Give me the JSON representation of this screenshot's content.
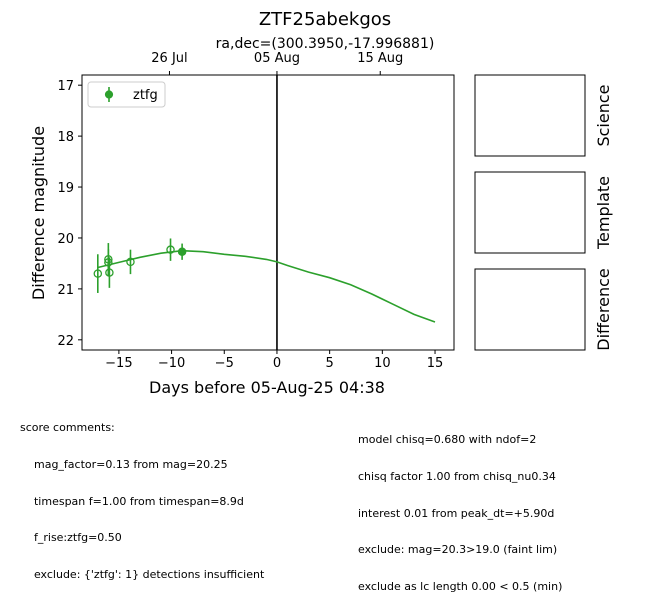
{
  "chart_data": {
    "type": "scatter",
    "title": "ZTF25abekgos",
    "subtitle": "ra,dec=(300.3950,-17.996881)",
    "xlabel": "Days before 05-Aug-25 04:38",
    "ylabel": "Difference magnitude",
    "xlim": [
      -18.5,
      16.8
    ],
    "ylim": [
      22.2,
      16.8
    ],
    "inverted_y": true,
    "x_ticks": [
      -15,
      -10,
      -5,
      0,
      5,
      10,
      15
    ],
    "x_tick_labels": [
      "−15",
      "−10",
      "−5",
      "0",
      "5",
      "10",
      "15"
    ],
    "y_ticks": [
      17,
      18,
      19,
      20,
      21,
      22
    ],
    "y_tick_labels": [
      "17",
      "18",
      "19",
      "20",
      "21",
      "22"
    ],
    "top_axis": {
      "ticks": [
        -10.2,
        0,
        9.8
      ],
      "labels": [
        "26 Jul",
        "05 Aug",
        "15 Aug"
      ]
    },
    "vline_x": 0,
    "legend": {
      "placement": "top-left",
      "entries": [
        "ztfg"
      ]
    },
    "colors": {
      "ztfg": "#2ca02c"
    },
    "series": [
      {
        "name": "ztfg",
        "points": [
          {
            "x": -17.0,
            "y": 20.7,
            "err": 0.38,
            "filled": false
          },
          {
            "x": -16.0,
            "y": 20.42,
            "err": 0.32,
            "filled": false
          },
          {
            "x": -16.0,
            "y": 20.48,
            "err": 0.26,
            "filled": false
          },
          {
            "x": -15.9,
            "y": 20.68,
            "err": 0.3,
            "filled": false
          },
          {
            "x": -13.9,
            "y": 20.47,
            "err": 0.24,
            "filled": false
          },
          {
            "x": -10.1,
            "y": 20.23,
            "err": 0.22,
            "filled": false
          },
          {
            "x": -9.0,
            "y": 20.27,
            "err": 0.16,
            "filled": true
          }
        ],
        "model": {
          "x": [
            -17.0,
            -15.0,
            -13.0,
            -11.0,
            -9.0,
            -7.0,
            -5.0,
            -3.0,
            -1.0,
            0.0,
            1.0,
            3.0,
            5.0,
            7.0,
            9.0,
            11.0,
            13.0,
            15.0
          ],
          "y": [
            20.58,
            20.48,
            20.38,
            20.3,
            20.25,
            20.27,
            20.32,
            20.36,
            20.42,
            20.47,
            20.54,
            20.67,
            20.78,
            20.92,
            21.1,
            21.3,
            21.5,
            21.65
          ]
        }
      }
    ],
    "stamps": [
      "Science",
      "Template",
      "Difference"
    ]
  },
  "comments": {
    "left": [
      "score comments:",
      "    mag_factor=0.13 from mag=20.25",
      "    timespan f=1.00 from timespan=8.9d",
      "    f_rise:ztfg=0.50",
      "    exclude: {'ztfg': 1} detections insufficient"
    ],
    "right": [
      "model chisq=0.680 with ndof=2",
      "chisq factor 1.00 from chisq_nu0.34",
      "interest 0.01 from peak_dt=+5.90d",
      "exclude: mag=20.3>19.0 (faint lim)",
      "exclude as lc length 0.00 < 0.5 (min)"
    ]
  }
}
